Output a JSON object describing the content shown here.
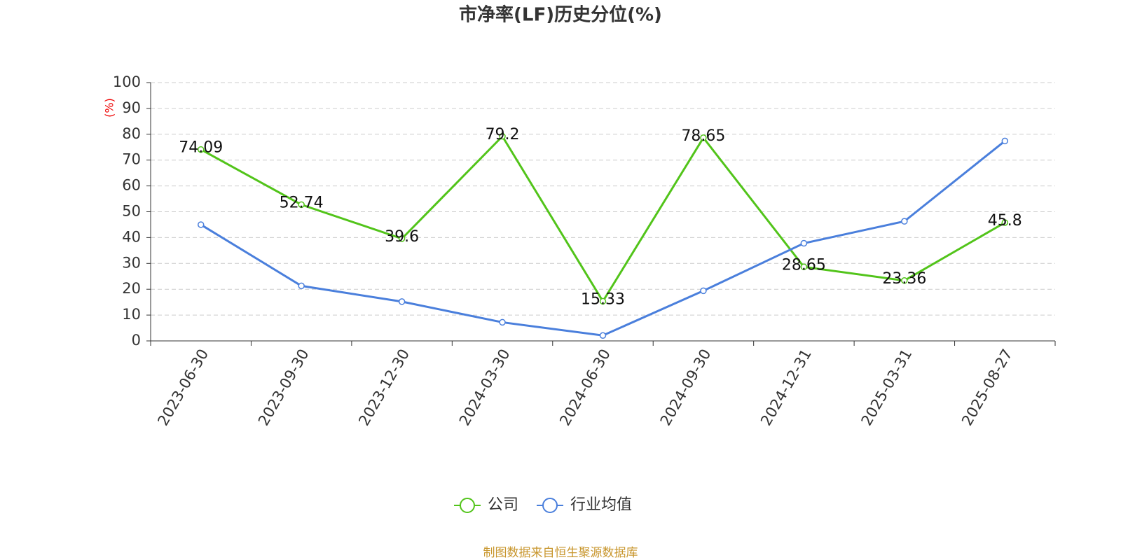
{
  "chart_data": {
    "type": "line",
    "title": "市净率(LF)历史分位(%)",
    "y_label": "(%)",
    "categories": [
      "2023-06-30",
      "2023-09-30",
      "2023-12-30",
      "2024-03-30",
      "2024-06-30",
      "2024-09-30",
      "2024-12-31",
      "2025-03-31",
      "2025-08-27"
    ],
    "series": [
      {
        "name": "公司",
        "color": "#52c41a",
        "show_labels": true,
        "values": [
          74.09,
          52.74,
          39.6,
          79.2,
          15.33,
          78.65,
          28.65,
          23.36,
          45.8
        ]
      },
      {
        "name": "行业均值",
        "color": "#4a7fdc",
        "show_labels": false,
        "values": [
          45,
          21.3,
          15.2,
          7.2,
          2.1,
          19.4,
          37.8,
          46.3,
          77.4
        ]
      }
    ],
    "ylim": [
      0,
      100
    ],
    "yticks": [
      0,
      10,
      20,
      30,
      40,
      50,
      60,
      70,
      80,
      90,
      100
    ],
    "grid": true,
    "source": "制图数据来自恒生聚源数据库"
  }
}
